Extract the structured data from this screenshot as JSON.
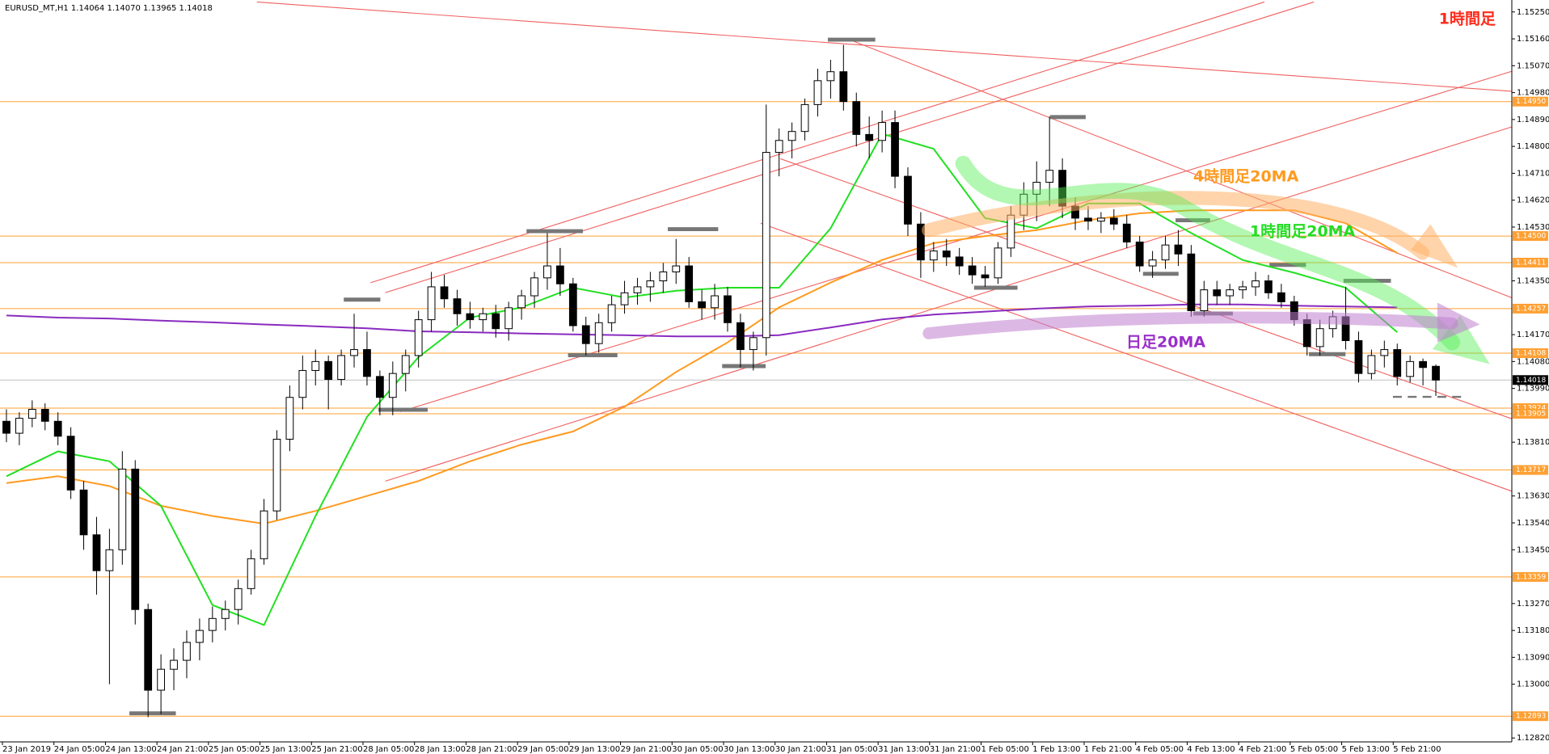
{
  "chart_data": {
    "type": "candlestick",
    "header": "EURUSD_MT,H1  1.14064 1.14070 1.13965 1.14018",
    "annotation": "1時間足",
    "categories": [
      "23 Jan 2019",
      null,
      null,
      null,
      "24 Jan 05:00",
      null,
      null,
      null,
      "24 Jan 13:00",
      null,
      null,
      null,
      "24 Jan 21:00",
      null,
      null,
      null,
      "25 Jan 05:00",
      null,
      null,
      null,
      "25 Jan 13:00",
      null,
      null,
      null,
      "25 Jan 21:00",
      null,
      null,
      null,
      "28 Jan 05:00",
      null,
      null,
      null,
      "28 Jan 13:00",
      null,
      null,
      null,
      "28 Jan 21:00",
      null,
      null,
      null,
      "29 Jan 05:00",
      null,
      null,
      null,
      "29 Jan 13:00",
      null,
      null,
      null,
      "29 Jan 21:00",
      null,
      null,
      null,
      "30 Jan 05:00",
      null,
      null,
      null,
      "30 Jan 13:00",
      null,
      null,
      null,
      "30 Jan 21:00",
      null,
      null,
      null,
      "31 Jan 05:00",
      null,
      null,
      null,
      "31 Jan 13:00",
      null,
      null,
      null,
      "31 Jan 21:00",
      null,
      null,
      null,
      "1 Feb 05:00",
      null,
      null,
      null,
      "1 Feb 13:00",
      null,
      null,
      null,
      "1 Feb 21:00",
      null,
      null,
      null,
      "4 Feb 05:00",
      null,
      null,
      null,
      "4 Feb 13:00",
      null,
      null,
      null,
      "4 Feb 21:00",
      null,
      null,
      null,
      "5 Feb 05:00",
      null,
      null,
      null,
      "5 Feb 13:00",
      null,
      null,
      null,
      "5 Feb 21:00",
      null,
      null,
      null
    ],
    "open": [
      1.1388,
      1.1384,
      1.1389,
      1.1392,
      1.1388,
      1.1383,
      1.1365,
      1.135,
      1.1338,
      1.1345,
      1.1372,
      1.1325,
      1.1298,
      1.1305,
      1.1308,
      1.1314,
      1.1318,
      1.1322,
      1.1325,
      1.1332,
      1.1342,
      1.1358,
      1.1382,
      1.1396,
      1.1405,
      1.1408,
      1.1402,
      1.141,
      1.1412,
      1.1403,
      1.1396,
      1.1404,
      1.141,
      1.1422,
      1.1433,
      1.1429,
      1.1424,
      1.1422,
      1.1424,
      1.1419,
      1.1426,
      1.143,
      1.1436,
      1.144,
      1.1434,
      1.142,
      1.1414,
      1.1421,
      1.1427,
      1.1431,
      1.1433,
      1.1435,
      1.1438,
      1.144,
      1.1428,
      1.1426,
      1.143,
      1.1421,
      1.1412,
      1.1416,
      1.1478,
      1.1482,
      1.1485,
      1.1494,
      1.1502,
      1.1505,
      1.1495,
      1.1484,
      1.1482,
      1.1488,
      1.147,
      1.1454,
      1.1442,
      1.1445,
      1.1443,
      1.144,
      1.1437,
      1.1436,
      1.1446,
      1.1457,
      1.1464,
      1.1468,
      1.1472,
      1.146,
      1.1456,
      1.1455,
      1.1456,
      1.1454,
      1.1448,
      1.144,
      1.1442,
      1.1447,
      1.1444,
      1.1425,
      1.1432,
      1.143,
      1.1432,
      1.1433,
      1.1435,
      1.1431,
      1.1428,
      1.1422,
      1.1413,
      1.1419,
      1.1423,
      1.1415,
      1.1404,
      1.141,
      1.1412,
      1.1403,
      1.1408,
      1.14064
    ],
    "high": [
      1.1392,
      1.1391,
      1.1395,
      1.1394,
      1.1391,
      1.1386,
      1.1368,
      1.1356,
      1.1352,
      1.1378,
      1.1375,
      1.1327,
      1.131,
      1.1312,
      1.1318,
      1.1322,
      1.1326,
      1.1328,
      1.1335,
      1.1345,
      1.1362,
      1.1385,
      1.14,
      1.141,
      1.1412,
      1.141,
      1.1412,
      1.1424,
      1.1418,
      1.1405,
      1.1408,
      1.1412,
      1.1425,
      1.1438,
      1.1437,
      1.1432,
      1.1428,
      1.1426,
      1.1427,
      1.1428,
      1.1432,
      1.1438,
      1.1451,
      1.1446,
      1.1436,
      1.1423,
      1.1424,
      1.143,
      1.1435,
      1.1436,
      1.1438,
      1.1441,
      1.1449,
      1.1443,
      1.1432,
      1.1434,
      1.1433,
      1.1424,
      1.1418,
      1.1494,
      1.1486,
      1.1488,
      1.1496,
      1.1506,
      1.1509,
      1.1514,
      1.1498,
      1.149,
      1.1492,
      1.1492,
      1.1473,
      1.1458,
      1.1448,
      1.1449,
      1.1446,
      1.1443,
      1.144,
      1.1448,
      1.146,
      1.1468,
      1.1475,
      1.149,
      1.1476,
      1.1463,
      1.146,
      1.1458,
      1.1459,
      1.1457,
      1.145,
      1.1445,
      1.145,
      1.1452,
      1.1447,
      1.1435,
      1.1435,
      1.1434,
      1.1435,
      1.1438,
      1.1437,
      1.1434,
      1.143,
      1.1424,
      1.1422,
      1.1425,
      1.1433,
      1.1418,
      1.1412,
      1.1415,
      1.1414,
      1.141,
      1.1409,
      1.1407
    ],
    "low": [
      1.1381,
      1.138,
      1.1386,
      1.1385,
      1.138,
      1.1362,
      1.1345,
      1.133,
      1.13,
      1.134,
      1.132,
      1.1289,
      1.129,
      1.1298,
      1.1302,
      1.1308,
      1.1314,
      1.1318,
      1.132,
      1.133,
      1.134,
      1.1355,
      1.1378,
      1.1392,
      1.14,
      1.1392,
      1.14,
      1.1406,
      1.14,
      1.139,
      1.139,
      1.1398,
      1.1406,
      1.1418,
      1.1426,
      1.142,
      1.1419,
      1.1418,
      1.1416,
      1.1415,
      1.1422,
      1.1426,
      1.1432,
      1.143,
      1.1418,
      1.141,
      1.1411,
      1.1418,
      1.1424,
      1.1427,
      1.1428,
      1.1431,
      1.1434,
      1.1426,
      1.1422,
      1.1422,
      1.1418,
      1.1406,
      1.1405,
      1.141,
      1.147,
      1.1476,
      1.1482,
      1.149,
      1.1496,
      1.1492,
      1.148,
      1.1476,
      1.1478,
      1.1466,
      1.145,
      1.1436,
      1.1438,
      1.144,
      1.1437,
      1.1434,
      1.1433,
      1.1434,
      1.1443,
      1.1452,
      1.1455,
      1.146,
      1.1456,
      1.1452,
      1.1452,
      1.1451,
      1.1452,
      1.1446,
      1.1438,
      1.1436,
      1.1439,
      1.144,
      1.1423,
      1.1423,
      1.1427,
      1.1427,
      1.1429,
      1.143,
      1.1429,
      1.1426,
      1.142,
      1.141,
      1.141,
      1.1416,
      1.1412,
      1.1401,
      1.1402,
      1.1406,
      1.14,
      1.1401,
      1.14,
      1.13965
    ],
    "close": [
      1.1384,
      1.1389,
      1.1392,
      1.1388,
      1.1383,
      1.1365,
      1.135,
      1.1338,
      1.1345,
      1.1372,
      1.1325,
      1.1298,
      1.1305,
      1.1308,
      1.1314,
      1.1318,
      1.1322,
      1.1325,
      1.1332,
      1.1342,
      1.1358,
      1.1382,
      1.1396,
      1.1405,
      1.1408,
      1.1402,
      1.141,
      1.1412,
      1.1403,
      1.1396,
      1.1404,
      1.141,
      1.1422,
      1.1433,
      1.1429,
      1.1424,
      1.1422,
      1.1424,
      1.1419,
      1.1426,
      1.143,
      1.1436,
      1.144,
      1.1434,
      1.142,
      1.1414,
      1.1421,
      1.1427,
      1.1431,
      1.1433,
      1.1435,
      1.1438,
      1.144,
      1.1428,
      1.1426,
      1.143,
      1.1421,
      1.1412,
      1.1416,
      1.1478,
      1.1482,
      1.1485,
      1.1494,
      1.1502,
      1.1505,
      1.1495,
      1.1484,
      1.1482,
      1.1488,
      1.147,
      1.1454,
      1.1442,
      1.1445,
      1.1443,
      1.144,
      1.1437,
      1.1436,
      1.1446,
      1.1457,
      1.1464,
      1.1468,
      1.1472,
      1.146,
      1.1456,
      1.1455,
      1.1456,
      1.1454,
      1.1448,
      1.144,
      1.1442,
      1.1447,
      1.1444,
      1.1425,
      1.1432,
      1.143,
      1.1432,
      1.1433,
      1.1435,
      1.1431,
      1.1428,
      1.1422,
      1.1413,
      1.1419,
      1.1423,
      1.1415,
      1.1404,
      1.141,
      1.1412,
      1.1403,
      1.1408,
      1.1406,
      1.14018
    ],
    "series": [
      {
        "name": "4時間足20MA",
        "color": "#ff9a1f",
        "x": [
          "23 Jan 2019",
          "24 Jan 05:00",
          "24 Jan 13:00",
          "24 Jan 21:00",
          "25 Jan 05:00",
          "25 Jan 13:00",
          "25 Jan 21:00",
          "28 Jan 05:00",
          "28 Jan 13:00",
          "28 Jan 21:00",
          "29 Jan 05:00",
          "29 Jan 13:00",
          "29 Jan 21:00",
          "30 Jan 05:00",
          "30 Jan 13:00",
          "30 Jan 21:00",
          "31 Jan 05:00",
          "31 Jan 13:00",
          "31 Jan 21:00",
          "1 Feb 05:00",
          "1 Feb 13:00",
          "1 Feb 21:00",
          "4 Feb 05:00",
          "4 Feb 13:00",
          "4 Feb 21:00",
          "5 Feb 05:00",
          "5 Feb 13:00",
          "5 Feb 21:00"
        ],
        "values": [
          1.13673,
          1.13696,
          1.13663,
          1.13597,
          1.13563,
          1.13537,
          1.1358,
          1.1363,
          1.1368,
          1.13746,
          1.13802,
          1.13846,
          1.13929,
          1.14045,
          1.14144,
          1.14261,
          1.14344,
          1.1442,
          1.14476,
          1.145,
          1.1452,
          1.14553,
          1.14576,
          1.14586,
          1.14586,
          1.14586,
          1.14543,
          1.14443
        ]
      },
      {
        "name": "1時間足20MA",
        "color": "#22e022",
        "x": [
          "23 Jan 2019",
          "24 Jan 05:00",
          "24 Jan 13:00",
          "24 Jan 21:00",
          "25 Jan 05:00",
          "25 Jan 13:00",
          "25 Jan 21:00",
          "28 Jan 05:00",
          "28 Jan 13:00",
          "28 Jan 21:00",
          "29 Jan 05:00",
          "29 Jan 13:00",
          "29 Jan 21:00",
          "30 Jan 05:00",
          "30 Jan 13:00",
          "30 Jan 21:00",
          "31 Jan 05:00",
          "31 Jan 13:00",
          "31 Jan 21:00",
          "1 Feb 05:00",
          "1 Feb 13:00",
          "1 Feb 21:00",
          "4 Feb 05:00",
          "4 Feb 13:00",
          "4 Feb 21:00",
          "5 Feb 05:00",
          "5 Feb 13:00",
          "5 Feb 21:00"
        ],
        "values": [
          1.13696,
          1.13779,
          1.13746,
          1.13597,
          1.13265,
          1.13198,
          1.13563,
          1.13895,
          1.14095,
          1.14227,
          1.14261,
          1.14327,
          1.14294,
          1.14317,
          1.14327,
          1.14327,
          1.14526,
          1.14842,
          1.14792,
          1.1456,
          1.14526,
          1.14609,
          1.14609,
          1.1451,
          1.1442,
          1.14377,
          1.14327,
          1.14178
        ]
      },
      {
        "name": "日足20MA",
        "color": "#8a2bc0",
        "x": [
          "23 Jan 2019",
          "24 Jan 05:00",
          "24 Jan 13:00",
          "24 Jan 21:00",
          "25 Jan 05:00",
          "25 Jan 13:00",
          "25 Jan 21:00",
          "28 Jan 05:00",
          "28 Jan 13:00",
          "28 Jan 21:00",
          "29 Jan 05:00",
          "29 Jan 13:00",
          "29 Jan 21:00",
          "30 Jan 05:00",
          "30 Jan 13:00",
          "30 Jan 21:00",
          "31 Jan 05:00",
          "31 Jan 13:00",
          "31 Jan 21:00",
          "1 Feb 05:00",
          "1 Feb 13:00",
          "1 Feb 21:00",
          "4 Feb 05:00",
          "4 Feb 13:00",
          "4 Feb 21:00",
          "5 Feb 05:00",
          "5 Feb 13:00",
          "5 Feb 21:00"
        ],
        "values": [
          1.14234,
          1.14227,
          1.14224,
          1.14217,
          1.14211,
          1.14204,
          1.14198,
          1.14191,
          1.14181,
          1.14178,
          1.14174,
          1.14171,
          1.14168,
          1.14164,
          1.14164,
          1.14168,
          1.14194,
          1.14221,
          1.14237,
          1.14247,
          1.14257,
          1.14264,
          1.14267,
          1.14271,
          1.14271,
          1.14267,
          1.14264,
          1.14261
        ]
      }
    ],
    "ylim": [
      1.12807,
      1.1529
    ],
    "yticks": [
      {
        "value": 1.1525,
        "label": "1.15250"
      },
      {
        "value": 1.1516,
        "label": "1.15160"
      },
      {
        "value": 1.1507,
        "label": "1.15070"
      },
      {
        "value": 1.1498,
        "label": "1.14980"
      },
      {
        "value": 1.1489,
        "label": "1.14890"
      },
      {
        "value": 1.148,
        "label": "1.14800"
      },
      {
        "value": 1.1471,
        "label": "1.14710"
      },
      {
        "value": 1.1462,
        "label": "1.14620"
      },
      {
        "value": 1.1453,
        "label": "1.14530"
      },
      {
        "value": 1.1435,
        "label": "1.14350"
      },
      {
        "value": 1.1417,
        "label": "1.14170"
      },
      {
        "value": 1.1408,
        "label": "1.14080"
      },
      {
        "value": 1.1399,
        "label": "1.13990"
      },
      {
        "value": 1.1381,
        "label": "1.13810"
      },
      {
        "value": 1.1363,
        "label": "1.13630"
      },
      {
        "value": 1.1354,
        "label": "1.13540"
      },
      {
        "value": 1.1345,
        "label": "1.13450"
      },
      {
        "value": 1.1327,
        "label": "1.13270"
      },
      {
        "value": 1.1318,
        "label": "1.13180"
      },
      {
        "value": 1.1309,
        "label": "1.13090"
      },
      {
        "value": 1.13,
        "label": "1.13000"
      },
      {
        "value": 1.1282,
        "label": "1.12820"
      }
    ],
    "levels": [
      {
        "value": 1.1495,
        "label": "1.14950"
      },
      {
        "value": 1.145,
        "label": "1.14500"
      },
      {
        "value": 1.14411,
        "label": "1.14411"
      },
      {
        "value": 1.14257,
        "label": "1.14257"
      },
      {
        "value": 1.14108,
        "label": "1.14108"
      },
      {
        "value": 1.13924,
        "label": "1.13924"
      },
      {
        "value": 1.13905,
        "label": "1.13905"
      },
      {
        "value": 1.13717,
        "label": "1.13717"
      },
      {
        "value": 1.13359,
        "label": "1.13359"
      },
      {
        "value": 1.12893,
        "label": "1.12893"
      }
    ],
    "level_color": "#ffa033",
    "last_price": {
      "value": 1.14018,
      "label": "1.14018"
    },
    "up_color": "#ffffff",
    "down_color": "#000000"
  }
}
